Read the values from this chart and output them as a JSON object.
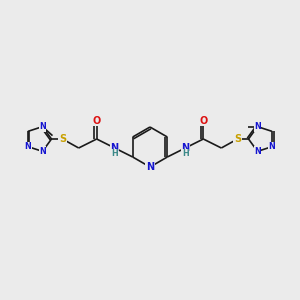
{
  "bg_color": "#ebebeb",
  "atom_colors": {
    "C": "#1a1a1a",
    "N": "#1515d0",
    "O": "#dd1111",
    "S": "#c8a000",
    "H": "#3a8888"
  },
  "lw": 1.2,
  "fs_large": 7.0,
  "fs_small": 5.8
}
